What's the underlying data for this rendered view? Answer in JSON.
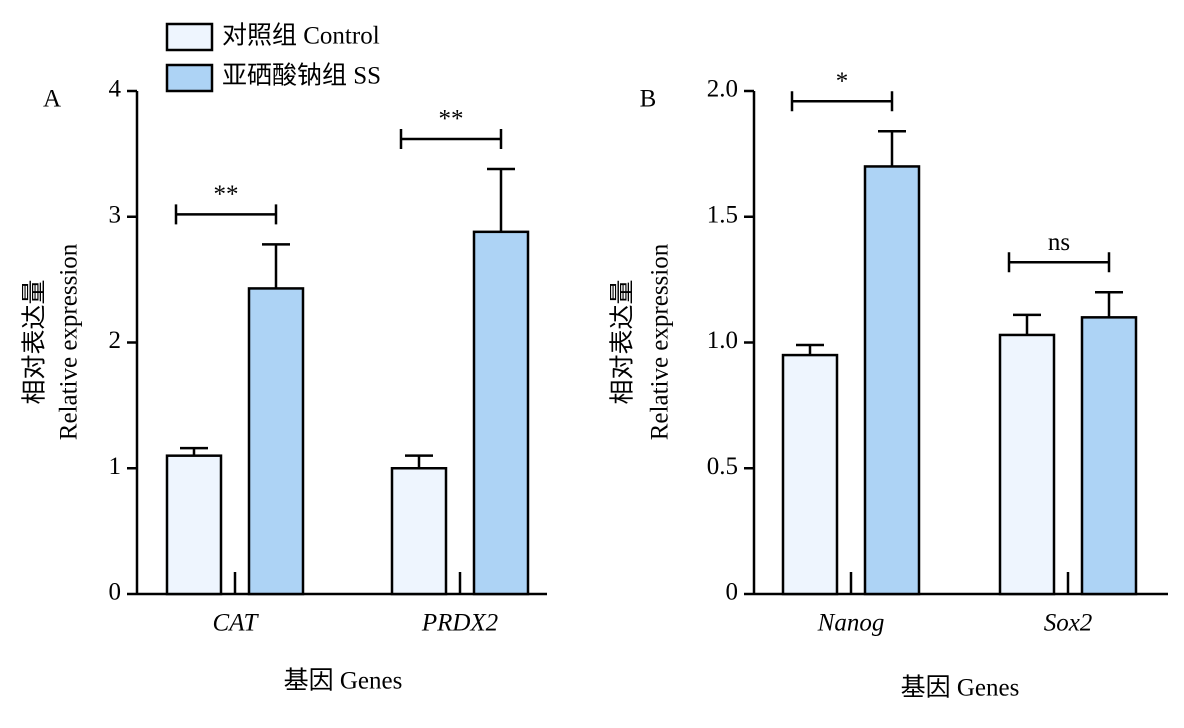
{
  "chart_data": [
    {
      "type": "bar",
      "panel": "A",
      "ylabel": [
        "相对表达量",
        "Relative expression"
      ],
      "xlabel": "基因 Genes",
      "categories": [
        "CAT",
        "PRDX2"
      ],
      "series": [
        {
          "name": "对照组 Control",
          "color": "#eef5fe",
          "values": [
            1.1,
            1.0
          ],
          "errors": [
            0.06,
            0.1
          ]
        },
        {
          "name": "亚硒酸钠组 SS",
          "color": "#add3f5",
          "values": [
            2.43,
            2.88
          ],
          "errors": [
            0.35,
            0.5
          ]
        }
      ],
      "significance": [
        "**",
        "**"
      ],
      "ylim": [
        0,
        4
      ],
      "yticks": [
        0,
        1,
        2,
        3,
        4
      ]
    },
    {
      "type": "bar",
      "panel": "B",
      "ylabel": [
        "相对表达量",
        "Relative expression"
      ],
      "xlabel": "基因 Genes",
      "categories": [
        "Nanog",
        "Sox2"
      ],
      "series": [
        {
          "color": "#eef5fe",
          "values": [
            0.95,
            1.03
          ],
          "errors": [
            0.04,
            0.08
          ]
        },
        {
          "color": "#add3f5",
          "values": [
            1.7,
            1.1
          ],
          "errors": [
            0.14,
            0.1
          ]
        }
      ],
      "significance": [
        "*",
        "ns"
      ],
      "ylim": [
        0,
        2
      ],
      "yticks": [
        0,
        0.5,
        {
          "value": 1,
          "label": "1.0"
        },
        1.5,
        {
          "value": 2,
          "label": "2.0"
        }
      ]
    }
  ]
}
